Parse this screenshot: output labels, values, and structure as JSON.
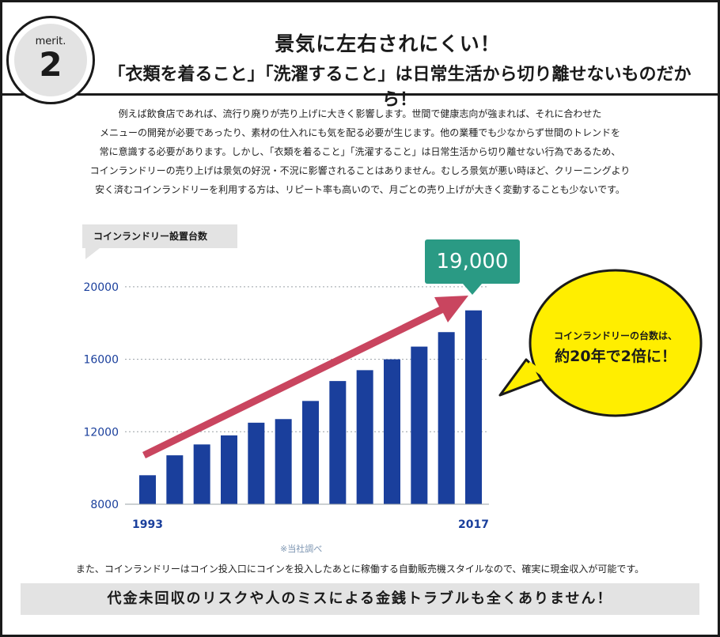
{
  "badge": {
    "label": "merit.",
    "number": "2"
  },
  "header": {
    "title": "景気に左右されにくい！",
    "subtitle": "「衣類を着ること」「洗濯すること」は日常生活から切り離せないものだから！"
  },
  "intro_lines": [
    "例えば飲食店であれば、流行り廃りが売り上げに大きく影響します。世間で健康志向が強まれば、それに合わせた",
    "メニューの開発が必要であったり、素材の仕入れにも気を配る必要が生じます。他の業種でも少なからず世間のトレンドを",
    "常に意識する必要があります。しかし、「衣類を着ること」「洗濯すること」は日常生活から切り離せない行為であるため、",
    "コインランドリーの売り上げは景気の好況・不況に影響されることはありません。むしろ景気が悪い時ほど、クリーニングより",
    "安く済むコインランドリーを利用する方は、リピート率も高いので、月ごとの売り上げが大きく変動することも少ないです。"
  ],
  "chart_label": "コインランドリー設置台数",
  "callout_value": "19,000",
  "bubble": {
    "line1": "コインランドリーの台数は、",
    "line2": "約20年で2倍に！"
  },
  "source": "※当社調べ",
  "footer_note": "また、コインランドリーはコイン投入口にコインを投入したあとに稼働する自動販売機スタイルなので、確実に現金収入が可能です。",
  "footer_banner": "代金未回収のリスクや人のミスによる金銭トラブルも全くありません！",
  "colors": {
    "bar": "#1a3f9c",
    "axis_text": "#1a3f9c",
    "arrow": "#c9455f",
    "callout": "#2a9a84",
    "bubble": "#ffee00"
  },
  "chart_data": {
    "type": "bar",
    "title": "コインランドリー設置台数",
    "x_tick_labels": [
      "1993",
      "2017"
    ],
    "values": [
      9600,
      10700,
      11300,
      11800,
      12500,
      12700,
      13700,
      14800,
      15400,
      16000,
      16700,
      17500,
      18700
    ],
    "yticks": [
      "8000",
      "12000",
      "16000",
      "20000"
    ],
    "ylim": [
      8000,
      21000
    ],
    "grid": "horizontal-dotted"
  }
}
